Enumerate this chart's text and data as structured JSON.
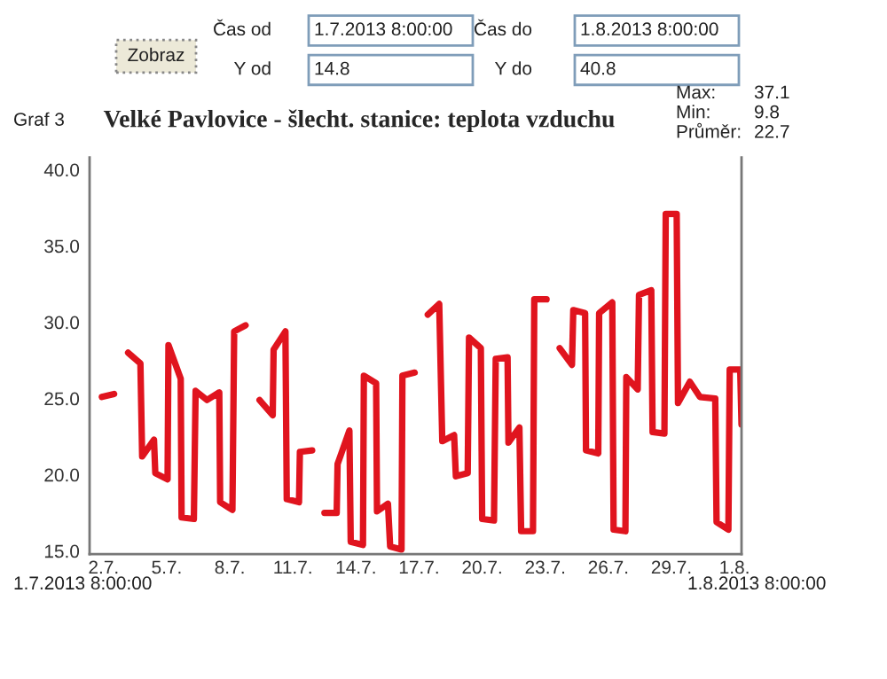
{
  "chart_data": {
    "type": "line",
    "title": "Velké Pavlovice - šlecht. stanice: teplota vzduchu",
    "annotations": [
      "Zobraz",
      "Čas od",
      "1.7.2013 8:00:00",
      "Čas do",
      "1.8.2013 8:00:00",
      "Y od",
      "14.8",
      "Y do",
      "40.8",
      "Graf 3",
      "Max:",
      "37.1",
      "Min:",
      "9.8",
      "Průměr:",
      "22.7",
      "1.7.2013 8:00:00",
      "1.8.2013 8:00:00"
    ],
    "x": [
      "2013-07-01T22:00",
      "2013-07-02T12:00",
      "2013-07-02T20:00",
      "2013-07-03T04:00",
      "2013-07-03T18:00",
      "2013-07-03T20:00",
      "2013-07-04T09:30",
      "2013-07-04T11:00",
      "2013-07-05T01:00",
      "2013-07-05T02:00",
      "2013-07-05T16:00",
      "2013-07-05T17:00",
      "2013-07-06T07:00",
      "2013-07-06T09:00",
      "2013-07-06T22:00",
      "2013-07-07T12:00",
      "2013-07-07T13:00",
      "2013-07-08T03:00",
      "2013-07-08T05:00",
      "2013-07-08T18:00",
      "2013-07-09T02:00",
      "2013-07-09T10:00",
      "2013-07-10T01:00",
      "2013-07-10T02:00",
      "2013-07-10T15:30",
      "2013-07-10T17:00",
      "2013-07-11T07:00",
      "2013-07-11T08:00",
      "2013-07-11T22:00",
      "2013-07-12T05:00",
      "2013-07-12T12:00",
      "2013-07-13T02:00",
      "2013-07-13T03:00",
      "2013-07-13T16:30",
      "2013-07-13T18:00",
      "2013-07-14T08:00",
      "2013-07-14T09:00",
      "2013-07-14T23:00",
      "2013-07-15T00:00",
      "2013-07-15T12:30",
      "2013-07-15T15:00",
      "2013-07-16T04:00",
      "2013-07-16T05:00",
      "2013-07-16T19:00",
      "2013-07-17T03:00",
      "2013-07-17T10:00",
      "2013-07-17T23:00",
      "2013-07-18T02:30",
      "2013-07-18T16:00",
      "2013-07-18T18:00",
      "2013-07-19T07:30",
      "2013-07-19T09:00",
      "2013-07-19T22:30",
      "2013-07-20T00:00",
      "2013-07-20T13:30",
      "2013-07-20T15:30",
      "2013-07-21T05:00",
      "2013-07-21T06:00",
      "2013-07-21T18:30",
      "2013-07-21T20:30",
      "2013-07-22T10:00",
      "2013-07-22T11:30",
      "2013-07-23T01:30",
      "2013-07-23T09:30",
      "2013-07-23T16:30",
      "2013-07-24T06:30",
      "2013-07-24T08:00",
      "2013-07-24T21:30",
      "2013-07-24T22:30",
      "2013-07-25T12:30",
      "2013-07-25T13:30",
      "2013-07-26T04:30",
      "2013-07-26T06:00",
      "2013-07-26T19:30",
      "2013-07-26T20:30",
      "2013-07-27T09:30",
      "2013-07-27T11:00",
      "2013-07-28T01:00",
      "2013-07-28T02:30",
      "2013-07-28T16:00",
      "2013-07-28T17:30",
      "2013-07-29T06:00",
      "2013-07-29T07:30",
      "2013-07-29T21:00",
      "2013-07-30T08:30",
      "2013-07-31T02:00",
      "2013-07-31T03:30",
      "2013-07-31T17:00",
      "2013-07-31T18:30",
      "2013-08-01T06:30",
      "2013-08-01T08:00"
    ],
    "series": [
      {
        "color": "#e0141e",
        "values": [
          25.1,
          25.3,
          null,
          28.0,
          27.3,
          21.2,
          22.3,
          20.1,
          19.7,
          28.5,
          26.3,
          17.2,
          17.1,
          25.5,
          24.9,
          25.4,
          18.2,
          17.7,
          29.4,
          29.8,
          null,
          24.9,
          23.9,
          28.2,
          29.4,
          18.4,
          18.2,
          21.5,
          21.6,
          null,
          17.5,
          17.5,
          20.7,
          22.9,
          15.6,
          15.4,
          26.5,
          26.0,
          17.6,
          18.1,
          15.3,
          15.1,
          26.5,
          26.7,
          null,
          30.5,
          31.2,
          22.2,
          22.6,
          19.9,
          20.1,
          29.0,
          28.3,
          17.1,
          17.0,
          27.6,
          27.7,
          22.1,
          23.1,
          16.3,
          16.3,
          31.5,
          31.5,
          null,
          28.3,
          27.2,
          30.8,
          30.6,
          21.6,
          21.4,
          30.6,
          31.3,
          16.4,
          16.3,
          26.4,
          25.6,
          31.8,
          32.1,
          22.8,
          22.7,
          37.1,
          37.1,
          24.7,
          26.1,
          25.1,
          25.0,
          16.9,
          16.4,
          26.9,
          26.9,
          23.3
        ]
      }
    ],
    "xlim": [
      "2013-07-01T08:00",
      "2013-08-01T08:00"
    ],
    "xticks": [
      {
        "value": "2013-07-02",
        "label": "2.7."
      },
      {
        "value": "2013-07-05",
        "label": "5.7."
      },
      {
        "value": "2013-07-08",
        "label": "8.7."
      },
      {
        "value": "2013-07-11",
        "label": "11.7."
      },
      {
        "value": "2013-07-14",
        "label": "14.7."
      },
      {
        "value": "2013-07-17",
        "label": "17.7."
      },
      {
        "value": "2013-07-20",
        "label": "20.7."
      },
      {
        "value": "2013-07-23",
        "label": "23.7."
      },
      {
        "value": "2013-07-26",
        "label": "26.7."
      },
      {
        "value": "2013-07-29",
        "label": "29.7."
      },
      {
        "value": "2013-08-01",
        "label": "1.8."
      }
    ],
    "ylim": [
      14.8,
      40.8
    ],
    "yticks": [
      {
        "value": 15,
        "label": "15.0"
      },
      {
        "value": 20,
        "label": "20.0"
      },
      {
        "value": 25,
        "label": "25.0"
      },
      {
        "value": 30,
        "label": "30.0"
      },
      {
        "value": 35,
        "label": "35.0"
      },
      {
        "value": 40,
        "label": "40.0"
      }
    ],
    "grid": false,
    "legend": false,
    "marker": "none",
    "line_style": "solid"
  }
}
